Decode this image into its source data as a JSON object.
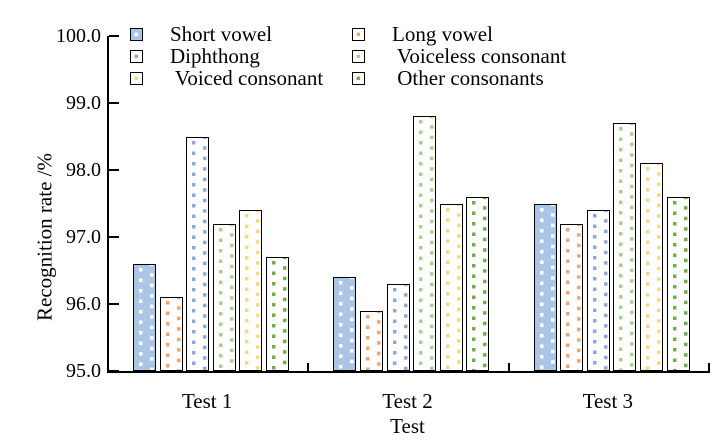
{
  "chart_data": {
    "type": "bar",
    "title": "",
    "xlabel": "Test",
    "ylabel": "Recognition rate /%",
    "ylim": [
      95.0,
      100.0
    ],
    "ytick_step": 1.0,
    "yticks": [
      "100.0",
      "99.0",
      "98.0",
      "97.0",
      "96.0",
      "95.0"
    ],
    "categories": [
      "Test 1",
      "Test 2",
      "Test 3"
    ],
    "series": [
      {
        "name": "Short vowel",
        "values": [
          96.6,
          96.4,
          97.5
        ],
        "fill": "#a9c6e7",
        "dot": "#ffffff"
      },
      {
        "name": "Long vowel",
        "values": [
          96.1,
          95.9,
          97.2
        ],
        "fill": "#ffffff",
        "dot": "#f2a46f"
      },
      {
        "name": "Diphthong",
        "values": [
          98.5,
          96.3,
          97.4
        ],
        "fill": "#ffffff",
        "dot": "#8fa8dc"
      },
      {
        "name": " Voiceless consonant",
        "values": [
          97.2,
          98.8,
          98.7
        ],
        "fill": "#ffffff",
        "dot": "#a9d18e"
      },
      {
        "name": " Voiced consonant",
        "values": [
          97.4,
          97.5,
          98.1
        ],
        "fill": "#ffffff",
        "dot": "#f6d87e"
      },
      {
        "name": " Other consonants",
        "values": [
          96.7,
          97.6,
          97.6
        ],
        "fill": "#ffffff",
        "dot": "#6fad4d"
      }
    ],
    "legend": {
      "position": "top-left-inside",
      "columns": 2,
      "row_major": true
    },
    "grid": false,
    "axis_color": "#000000",
    "text_color": "#000000",
    "background": "#ffffff"
  }
}
